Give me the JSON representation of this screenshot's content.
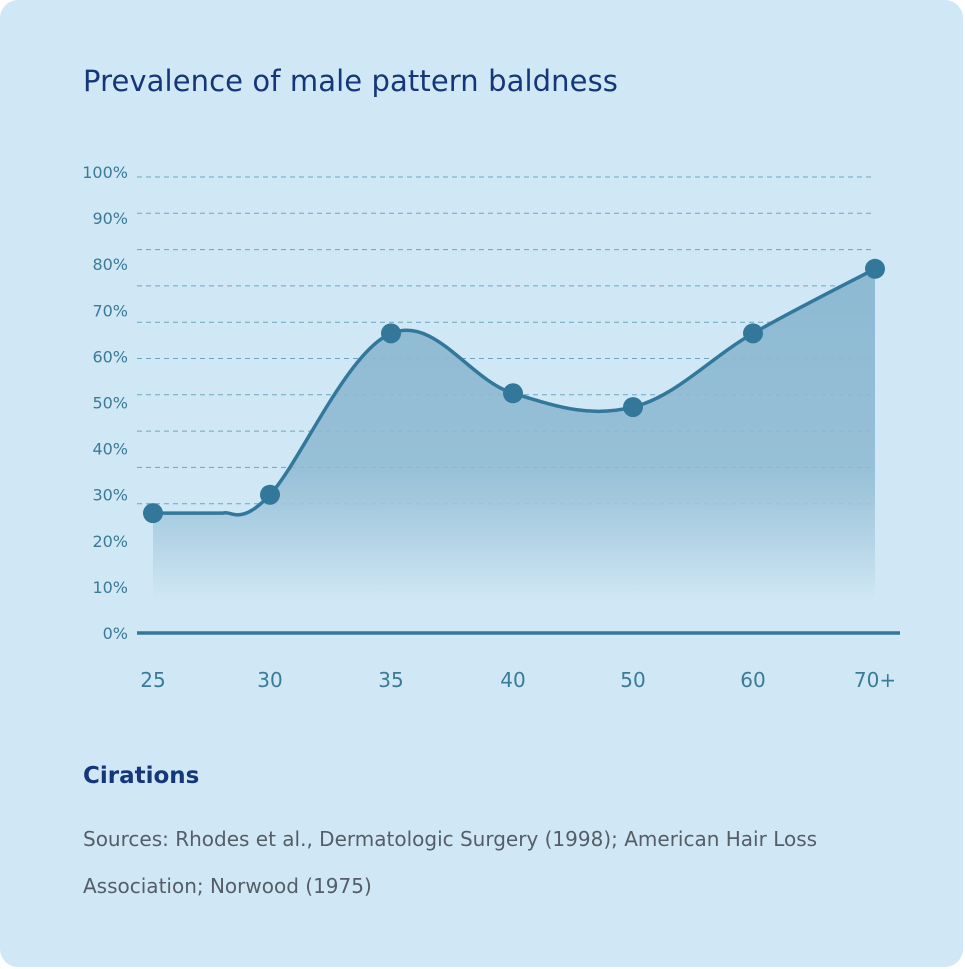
{
  "title": "Prevalence of male pattern baldness",
  "chart_data": {
    "type": "area",
    "title": "Prevalence of male pattern baldness",
    "xlabel": "",
    "ylabel": "",
    "categories": [
      "25",
      "30",
      "35",
      "40",
      "50",
      "60",
      "70+"
    ],
    "values": [
      26,
      30,
      65,
      52,
      49,
      65,
      79
    ],
    "y_ticks": [
      "0%",
      "10%",
      "20%",
      "30%",
      "40%",
      "50%",
      "60%",
      "70%",
      "80%",
      "90%",
      "100%"
    ],
    "ylim": [
      0,
      100
    ],
    "grid": true,
    "colors": {
      "line": "#33789a",
      "point": "#33789a",
      "fill_top": "#8db9d2",
      "fill_bottom": "#d0e8f5",
      "grid": "#4f8eac",
      "tick": "#3b7a99"
    }
  },
  "citations": {
    "heading": "Cirations",
    "text": "Sources: Rhodes et al., Dermatologic Surgery (1998); American Hair Loss Association; Norwood (1975)"
  }
}
